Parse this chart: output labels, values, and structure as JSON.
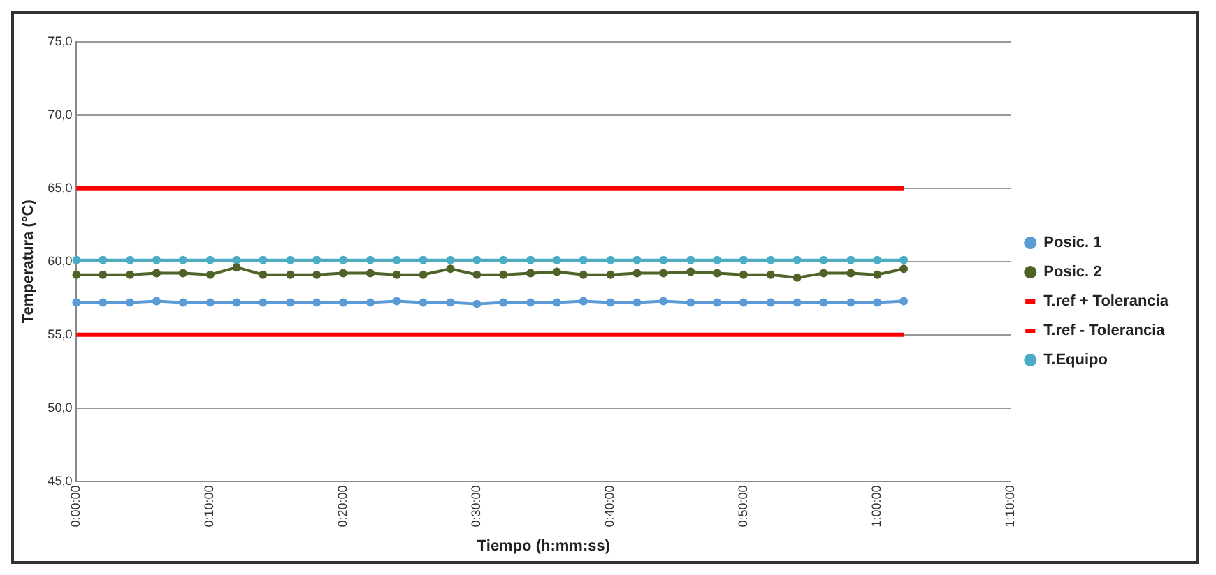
{
  "chart_data": {
    "type": "line",
    "xlabel": "Tiempo (h:mm:ss)",
    "ylabel": "Temperatura (°C)",
    "x": [
      0,
      0.033,
      0.067,
      0.1,
      0.133,
      0.167,
      0.2,
      0.233,
      0.267,
      0.3,
      0.333,
      0.367,
      0.4,
      0.433,
      0.467,
      0.5,
      0.533,
      0.567,
      0.6,
      0.633,
      0.667,
      0.7,
      0.733,
      0.767,
      0.8,
      0.833,
      0.867,
      0.9,
      0.933,
      0.967,
      1.0,
      1.033
    ],
    "series": [
      {
        "name": "Posic. 1",
        "color": "#5b9bd5",
        "values": [
          57.2,
          57.2,
          57.2,
          57.3,
          57.2,
          57.2,
          57.2,
          57.2,
          57.2,
          57.2,
          57.2,
          57.2,
          57.3,
          57.2,
          57.2,
          57.1,
          57.2,
          57.2,
          57.2,
          57.3,
          57.2,
          57.2,
          57.3,
          57.2,
          57.2,
          57.2,
          57.2,
          57.2,
          57.2,
          57.2,
          57.2,
          57.3
        ]
      },
      {
        "name": "Posic. 2",
        "color": "#4f6228",
        "values": [
          59.1,
          59.1,
          59.1,
          59.2,
          59.2,
          59.1,
          59.6,
          59.1,
          59.1,
          59.1,
          59.2,
          59.2,
          59.1,
          59.1,
          59.5,
          59.1,
          59.1,
          59.2,
          59.3,
          59.1,
          59.1,
          59.2,
          59.2,
          59.3,
          59.2,
          59.1,
          59.1,
          58.9,
          59.2,
          59.2,
          59.1,
          59.5
        ]
      },
      {
        "name": "T.ref + Tolerancia",
        "color": "#ff0000",
        "type": "line",
        "marker": "none",
        "values": [
          65,
          65,
          65,
          65,
          65,
          65,
          65,
          65,
          65,
          65,
          65,
          65,
          65,
          65,
          65,
          65,
          65,
          65,
          65,
          65,
          65,
          65,
          65,
          65,
          65,
          65,
          65,
          65,
          65,
          65,
          65,
          65
        ]
      },
      {
        "name": "T.ref - Tolerancia",
        "color": "#ff0000",
        "type": "line",
        "marker": "none",
        "values": [
          55,
          55,
          55,
          55,
          55,
          55,
          55,
          55,
          55,
          55,
          55,
          55,
          55,
          55,
          55,
          55,
          55,
          55,
          55,
          55,
          55,
          55,
          55,
          55,
          55,
          55,
          55,
          55,
          55,
          55,
          55,
          55
        ]
      },
      {
        "name": "T.Equipo",
        "color": "#4bacc6",
        "values": [
          60.1,
          60.1,
          60.1,
          60.1,
          60.1,
          60.1,
          60.1,
          60.1,
          60.1,
          60.1,
          60.1,
          60.1,
          60.1,
          60.1,
          60.1,
          60.1,
          60.1,
          60.1,
          60.1,
          60.1,
          60.1,
          60.1,
          60.1,
          60.1,
          60.1,
          60.1,
          60.1,
          60.1,
          60.1,
          60.1,
          60.1,
          60.1
        ]
      }
    ],
    "xlim": [
      0,
      1.1667
    ],
    "xticks": [
      {
        "value": 0,
        "label": "0:00:00"
      },
      {
        "value": 0.1667,
        "label": "0:10:00"
      },
      {
        "value": 0.3333,
        "label": "0:20:00"
      },
      {
        "value": 0.5,
        "label": "0:30:00"
      },
      {
        "value": 0.6667,
        "label": "0:40:00"
      },
      {
        "value": 0.8333,
        "label": "0:50:00"
      },
      {
        "value": 1.0,
        "label": "1:00:00"
      },
      {
        "value": 1.1667,
        "label": "1:10:00"
      }
    ],
    "ylim": [
      45,
      75
    ],
    "yticks": [
      {
        "value": 45,
        "label": "45,0"
      },
      {
        "value": 50,
        "label": "50,0"
      },
      {
        "value": 55,
        "label": "55,0"
      },
      {
        "value": 60,
        "label": "60,0"
      },
      {
        "value": 65,
        "label": "65,0"
      },
      {
        "value": 70,
        "label": "70,0"
      },
      {
        "value": 75,
        "label": "75,0"
      }
    ],
    "grid": "y",
    "legend": "right",
    "marker": "circle",
    "line_style": "solid"
  }
}
